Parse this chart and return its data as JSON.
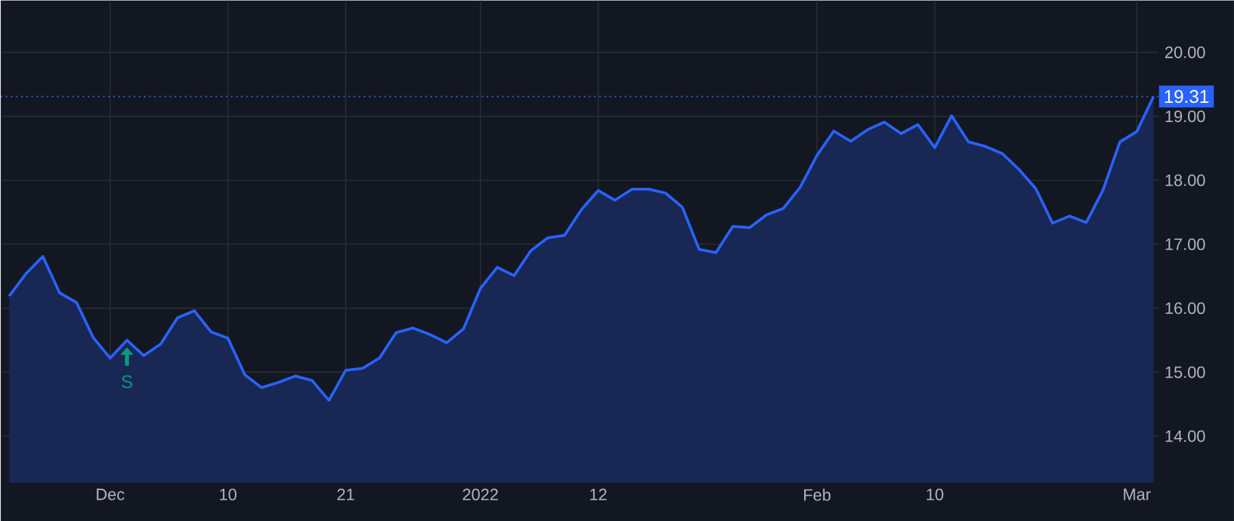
{
  "chart_data": {
    "type": "area",
    "categories": [
      null,
      null,
      null,
      null,
      null,
      null,
      "Dec",
      null,
      null,
      null,
      null,
      null,
      null,
      "10",
      null,
      null,
      null,
      null,
      null,
      null,
      "21",
      null,
      null,
      null,
      null,
      null,
      null,
      null,
      "2022",
      null,
      null,
      null,
      null,
      null,
      null,
      "12",
      null,
      null,
      null,
      null,
      null,
      null,
      null,
      null,
      null,
      null,
      null,
      null,
      "Feb",
      null,
      null,
      null,
      null,
      null,
      null,
      "10",
      null,
      null,
      null,
      null,
      null,
      null,
      null,
      null,
      null,
      null,
      null,
      "Mar",
      null
    ],
    "series": [
      {
        "color": "#2962ff",
        "values": [
          16.19,
          16.54,
          16.81,
          16.24,
          16.09,
          15.54,
          15.22,
          15.5,
          15.26,
          15.44,
          15.85,
          15.96,
          15.63,
          15.53,
          14.96,
          14.76,
          14.84,
          14.94,
          14.87,
          14.56,
          15.03,
          15.06,
          15.22,
          15.62,
          15.69,
          15.59,
          15.46,
          15.68,
          16.31,
          16.64,
          16.51,
          16.9,
          17.1,
          17.14,
          17.54,
          17.84,
          17.69,
          17.86,
          17.86,
          17.8,
          17.58,
          16.92,
          16.87,
          17.28,
          17.26,
          17.46,
          17.56,
          17.89,
          18.39,
          18.77,
          18.61,
          18.79,
          18.91,
          18.73,
          18.87,
          18.51,
          19.01,
          18.6,
          18.53,
          18.42,
          18.17,
          17.87,
          17.33,
          17.44,
          17.34,
          17.85,
          18.6,
          18.76,
          19.31
        ]
      }
    ],
    "ylim": [
      13.27,
      20.81
    ],
    "yticks": [
      {
        "value": 14,
        "label": "14.00"
      },
      {
        "value": 15,
        "label": "15.00"
      },
      {
        "value": 16,
        "label": "16.00"
      },
      {
        "value": 17,
        "label": "17.00"
      },
      {
        "value": 18,
        "label": "18.00"
      },
      {
        "value": 19,
        "label": "19.00"
      },
      {
        "value": 20,
        "label": "20.00"
      }
    ],
    "ref_lines": [
      {
        "axis": "y",
        "value": 19.31,
        "label": "19.31",
        "color": "#2962ff",
        "line_style": "dotted"
      }
    ],
    "annotations": [
      {
        "text": "S",
        "y": 15.5
      }
    ],
    "grid": true,
    "marker": "none"
  }
}
